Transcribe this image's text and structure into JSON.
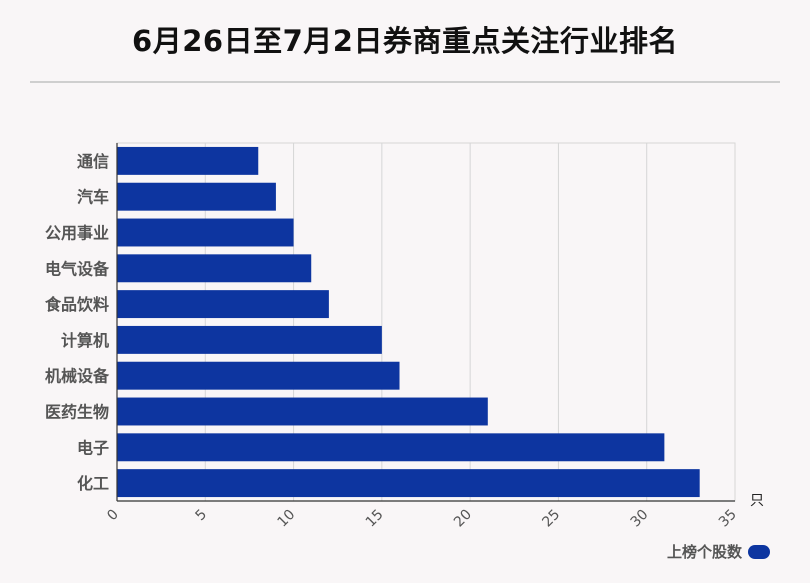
{
  "chart_data": {
    "type": "bar",
    "orientation": "horizontal",
    "title": "6月26日至7月2日券商重点关注行业排名",
    "categories": [
      "通信",
      "汽车",
      "公用事业",
      "电气设备",
      "食品饮料",
      "计算机",
      "机械设备",
      "医药生物",
      "电子",
      "化工"
    ],
    "series": [
      {
        "name": "上榜个股数",
        "values": [
          8,
          9,
          10,
          11,
          12,
          15,
          16,
          21,
          31,
          33
        ],
        "color": "#0d35a0"
      }
    ],
    "xlim": [
      0,
      35
    ],
    "xticks": [
      "0",
      "5",
      "10",
      "15",
      "20",
      "25",
      "30",
      "35"
    ],
    "xunit": "只",
    "grid": true,
    "legend_position": "bottom-right"
  }
}
